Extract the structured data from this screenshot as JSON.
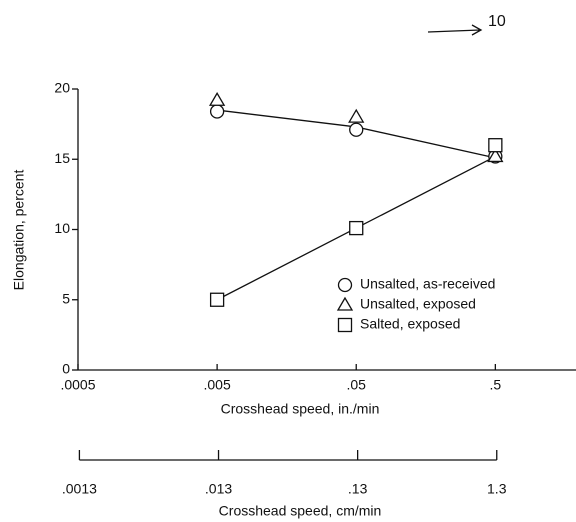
{
  "chart_data": {
    "type": "scatter",
    "annotation": "10",
    "xlabel": "Crosshead speed, in./min",
    "ylabel": "Elongation, percent",
    "x2label": "Crosshead speed, cm/min",
    "xscale": "log",
    "xlim": [
      0.0005,
      1.9
    ],
    "xticks": [
      {
        "value": 0.0005,
        "label": ".0005"
      },
      {
        "value": 0.005,
        "label": ".005"
      },
      {
        "value": 0.05,
        "label": ".05"
      },
      {
        "value": 0.5,
        "label": ".5"
      }
    ],
    "x2lim": [
      0.00127,
      4.826
    ],
    "x2ticks": [
      {
        "value": 0.0013,
        "label": ".0013"
      },
      {
        "value": 0.013,
        "label": ".013"
      },
      {
        "value": 0.13,
        "label": ".13"
      },
      {
        "value": 1.3,
        "label": "1.3"
      }
    ],
    "ylim": [
      0,
      20
    ],
    "yticks": [
      0,
      5,
      10,
      15,
      20
    ],
    "x": [
      0.005,
      0.05,
      0.5
    ],
    "series": [
      {
        "name": "Unsalted, as-received",
        "marker": "circle",
        "color": "#111",
        "values": [
          18.4,
          17.1,
          15.2
        ]
      },
      {
        "name": "Unsalted, exposed",
        "marker": "triangle",
        "color": "#111",
        "values": [
          19.2,
          18.0,
          15.2
        ]
      },
      {
        "name": "Salted, exposed",
        "marker": "square",
        "color": "#111",
        "values": [
          5.0,
          10.1,
          16.0
        ]
      }
    ],
    "fit_lines": [
      {
        "values": [
          18.5,
          17.3,
          15.1
        ]
      },
      {
        "values": [
          5.0,
          10.1,
          15.2
        ]
      }
    ]
  }
}
